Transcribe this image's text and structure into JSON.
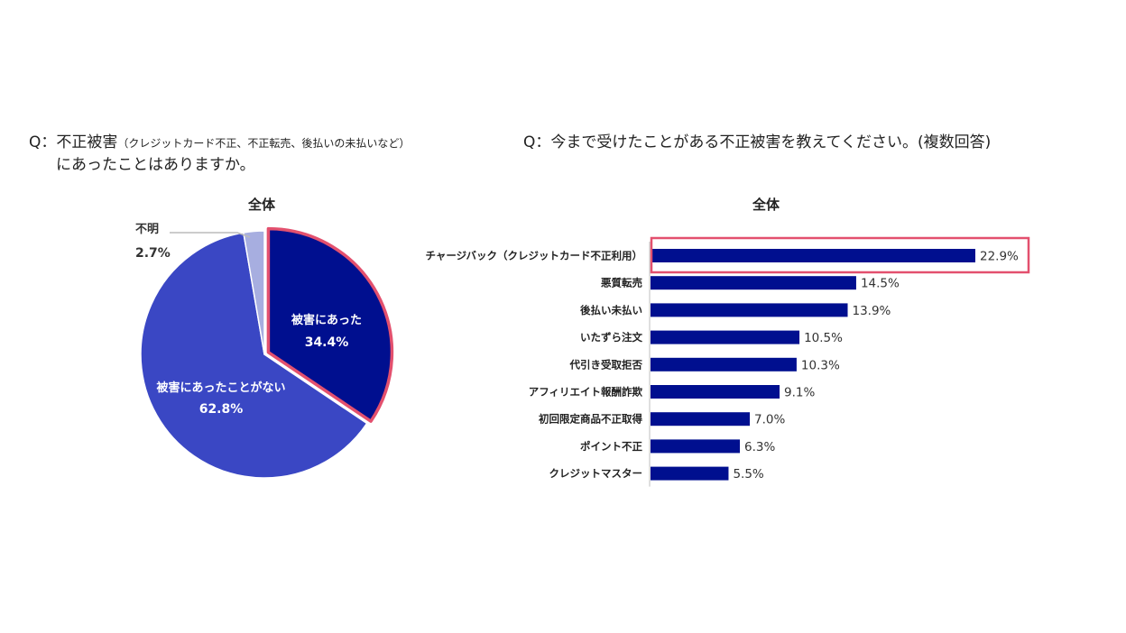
{
  "questions": {
    "left_prefix": "Q：不正被害",
    "left_note": "（クレジットカード不正、不正転売、後払いの未払いなど）",
    "left_line2": "にあったことはありますか。",
    "right": "Q：今まで受けたことがある不正被害を教えてください。(複数回答)"
  },
  "chart_data": [
    {
      "type": "pie",
      "title": "全体",
      "slices": [
        {
          "label": "被害にあった",
          "value": 34.4,
          "value_label": "34.4%",
          "color": "#000f8f",
          "highlight": true
        },
        {
          "label": "被害にあったことがない",
          "value": 62.8,
          "value_label": "62.8%",
          "color": "#3a47c4"
        },
        {
          "label": "不明",
          "value": 2.7,
          "value_label": "2.7%",
          "color": "#a7aee0"
        }
      ],
      "highlight_color": "#e3506e"
    },
    {
      "type": "bar",
      "orientation": "horizontal",
      "title": "全体",
      "categories": [
        "チャージバック（クレジットカード不正利用）",
        "悪質転売",
        "後払い未払い",
        "いたずら注文",
        "代引き受取拒否",
        "アフィリエイト報酬詐欺",
        "初回限定商品不正取得",
        "ポイント不正",
        "クレジットマスター"
      ],
      "values": [
        22.9,
        14.5,
        13.9,
        10.5,
        10.3,
        9.1,
        7.0,
        6.3,
        5.5
      ],
      "value_labels": [
        "22.9%",
        "14.5%",
        "13.9%",
        "10.5%",
        "10.3%",
        "9.1%",
        "7.0%",
        "6.3%",
        "5.5%"
      ],
      "bar_color": "#000f8f",
      "highlight_index": 0,
      "highlight_color": "#e3506e"
    }
  ]
}
